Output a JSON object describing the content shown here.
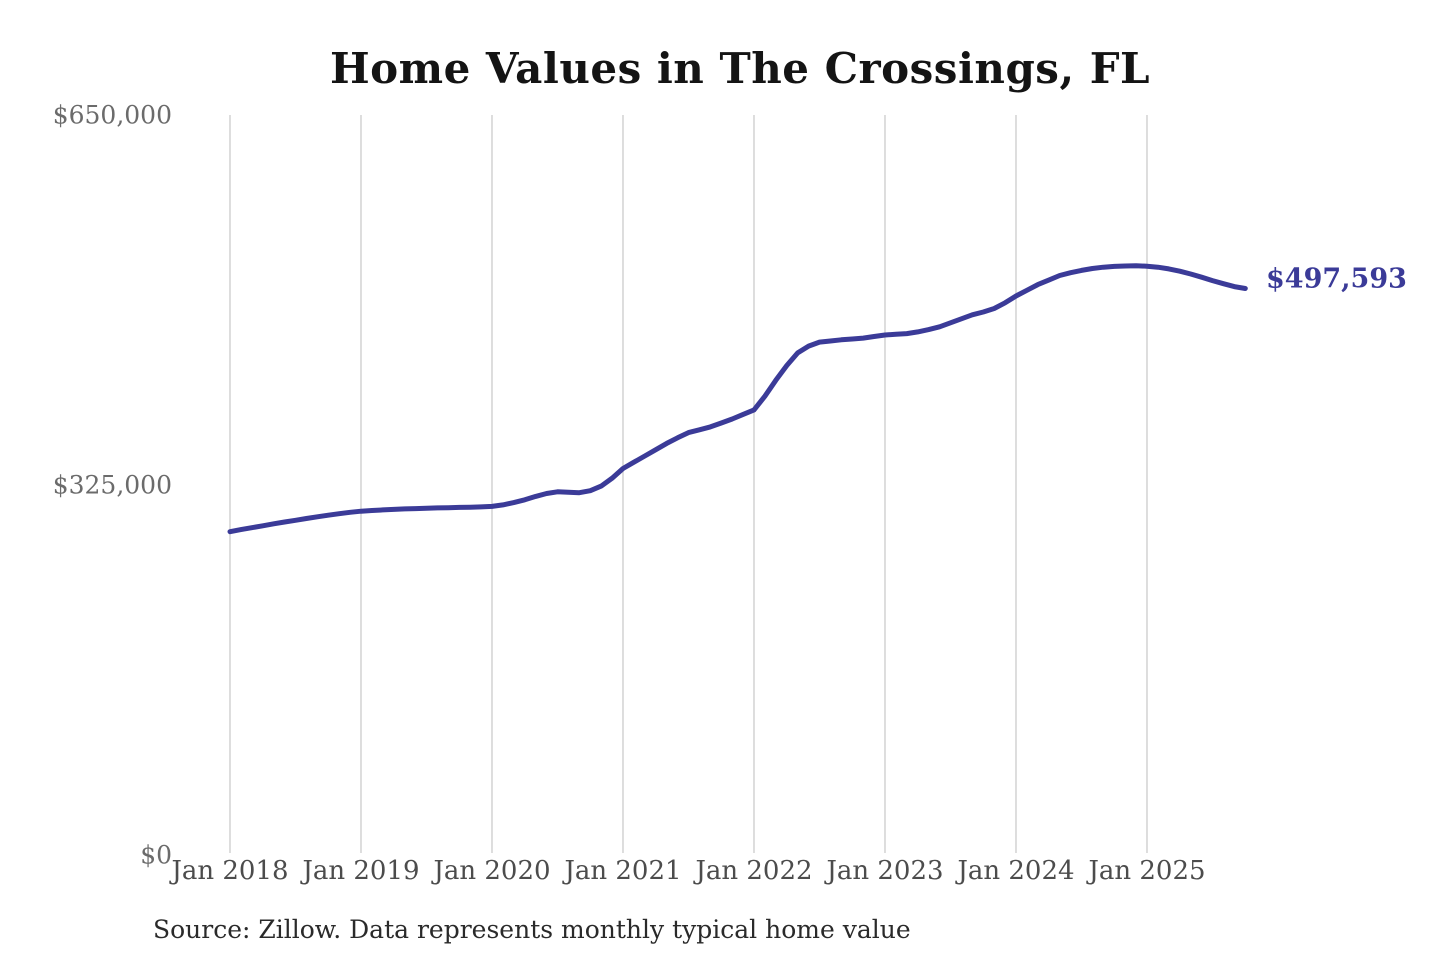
{
  "title": "Home Values in The Crossings, FL",
  "source_note": "Source: Zillow. Data represents monthly typical home value",
  "colors": {
    "line": "#3b3b98",
    "end_label": "#3b3b98",
    "grid": "#cbcbcb",
    "y_axis_text": "#6b6b6b",
    "x_axis_text": "#4c4c4c",
    "title_text": "#141414",
    "source_text": "#2a2a2a",
    "background": "#ffffff"
  },
  "chart_data": {
    "type": "line",
    "title": "Home Values in The Crossings, FL",
    "xlabel": "",
    "ylabel": "",
    "ylim": [
      0,
      650000
    ],
    "grid": "vertical-only",
    "legend": "none",
    "last_value_label": "$497,593",
    "last_value": 497593,
    "y_ticks": [
      {
        "value": 0,
        "label": "$0"
      },
      {
        "value": 325000,
        "label": "$325,000"
      },
      {
        "value": 650000,
        "label": "$650,000"
      }
    ],
    "x_ticks": [
      "Jan 2018",
      "Jan 2019",
      "Jan 2020",
      "Jan 2021",
      "Jan 2022",
      "Jan 2023",
      "Jan 2024",
      "Jan 2025"
    ],
    "series": [
      {
        "name": "Monthly typical home value",
        "x": [
          "2018-01",
          "2018-02",
          "2018-03",
          "2018-04",
          "2018-05",
          "2018-06",
          "2018-07",
          "2018-08",
          "2018-09",
          "2018-10",
          "2018-11",
          "2018-12",
          "2019-01",
          "2019-02",
          "2019-03",
          "2019-04",
          "2019-05",
          "2019-06",
          "2019-07",
          "2019-08",
          "2019-09",
          "2019-10",
          "2019-11",
          "2019-12",
          "2020-01",
          "2020-02",
          "2020-03",
          "2020-04",
          "2020-05",
          "2020-06",
          "2020-07",
          "2020-08",
          "2020-09",
          "2020-10",
          "2020-11",
          "2020-12",
          "2021-01",
          "2021-02",
          "2021-03",
          "2021-04",
          "2021-05",
          "2021-06",
          "2021-07",
          "2021-08",
          "2021-09",
          "2021-10",
          "2021-11",
          "2021-12",
          "2022-01",
          "2022-02",
          "2022-03",
          "2022-04",
          "2022-05",
          "2022-06",
          "2022-07",
          "2022-08",
          "2022-09",
          "2022-10",
          "2022-11",
          "2022-12",
          "2023-01",
          "2023-02",
          "2023-03",
          "2023-04",
          "2023-05",
          "2023-06",
          "2023-07",
          "2023-08",
          "2023-09",
          "2023-10",
          "2023-11",
          "2023-12",
          "2024-01",
          "2024-02",
          "2024-03",
          "2024-04",
          "2024-05",
          "2024-06",
          "2024-07",
          "2024-08",
          "2024-09",
          "2024-10",
          "2024-11",
          "2024-12",
          "2025-01",
          "2025-02",
          "2025-03",
          "2025-04",
          "2025-05",
          "2025-06",
          "2025-07",
          "2025-08",
          "2025-09",
          "2025-10"
        ],
        "values": [
          284000,
          285800,
          287500,
          289200,
          290900,
          292500,
          294000,
          295600,
          297100,
          298500,
          299800,
          301000,
          302000,
          302600,
          303100,
          303600,
          304000,
          304300,
          304600,
          304900,
          305100,
          305300,
          305500,
          305800,
          306200,
          307500,
          309500,
          312000,
          315000,
          317500,
          319000,
          318600,
          318200,
          320000,
          324000,
          331000,
          339500,
          345000,
          350500,
          356000,
          361500,
          366500,
          371000,
          373500,
          376000,
          379500,
          383000,
          387000,
          391000,
          403000,
          417000,
          430000,
          441000,
          447000,
          450500,
          451500,
          452500,
          453200,
          454000,
          455400,
          456800,
          457500,
          458000,
          459500,
          461500,
          464000,
          467500,
          471000,
          474500,
          477000,
          480000,
          485000,
          491000,
          496000,
          501000,
          505000,
          509000,
          511500,
          513500,
          515200,
          516300,
          517000,
          517400,
          517500,
          517200,
          516300,
          514800,
          512800,
          510300,
          507500,
          504500,
          501800,
          499300,
          497593
        ]
      }
    ]
  }
}
